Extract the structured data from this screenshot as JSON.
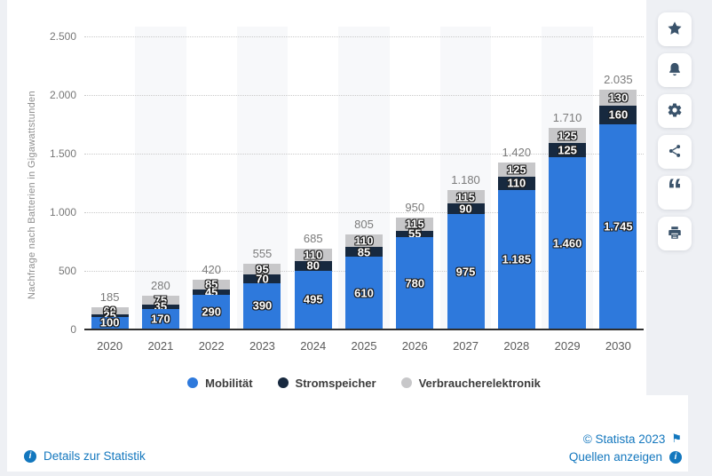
{
  "chart_data": {
    "type": "bar",
    "stacked": true,
    "title": "",
    "xlabel": "",
    "ylabel": "Nachfrage nach Batterien in Gigawattstunden",
    "categories": [
      "2020",
      "2021",
      "2022",
      "2023",
      "2024",
      "2025",
      "2026",
      "2027",
      "2028",
      "2029",
      "2030"
    ],
    "series": [
      {
        "name": "Mobilität",
        "color": "#2e79dc",
        "values": [
          100,
          170,
          290,
          390,
          495,
          610,
          780,
          975,
          1185,
          1460,
          1745
        ],
        "value_labels": [
          "100",
          "170",
          "290",
          "390",
          "495",
          "610",
          "780",
          "975",
          "1.185",
          "1.460",
          "1.745"
        ]
      },
      {
        "name": "Stromspeicher",
        "color": "#17293f",
        "values": [
          25,
          35,
          45,
          70,
          80,
          85,
          55,
          90,
          110,
          125,
          160
        ],
        "value_labels": [
          "25",
          "35",
          "45",
          "70",
          "80",
          "85",
          "55",
          "90",
          "110",
          "125",
          "160"
        ]
      },
      {
        "name": "Verbraucherelektronik",
        "color": "#c7c7c9",
        "values": [
          60,
          75,
          85,
          95,
          110,
          110,
          115,
          115,
          125,
          125,
          130
        ],
        "value_labels": [
          "60",
          "75",
          "85",
          "95",
          "110",
          "110",
          "115",
          "115",
          "125",
          "125",
          "130"
        ]
      }
    ],
    "totals": [
      185,
      280,
      420,
      555,
      685,
      805,
      950,
      1180,
      1420,
      1710,
      2035
    ],
    "total_labels": [
      "185",
      "280",
      "420",
      "555",
      "685",
      "805",
      "950",
      "1.180",
      "1.420",
      "1.710",
      "2.035"
    ],
    "ylim": [
      0,
      2500
    ],
    "y_ticks": {
      "values": [
        0,
        500,
        1000,
        1500,
        2000,
        2500
      ],
      "labels": [
        "0",
        "500",
        "1.000",
        "1.500",
        "2.000",
        "2.500"
      ]
    },
    "grid": "dotted horizontal lines every 500",
    "legend_position": "bottom"
  },
  "sidebar": {
    "buttons": [
      {
        "id": "favorite",
        "icon": "star-icon"
      },
      {
        "id": "notification",
        "icon": "bell-icon"
      },
      {
        "id": "settings",
        "icon": "gear-icon"
      },
      {
        "id": "share",
        "icon": "share-icon"
      },
      {
        "id": "cite",
        "icon": "quote-icon"
      },
      {
        "id": "print",
        "icon": "printer-icon"
      }
    ]
  },
  "footer": {
    "details_label": "Details zur Statistik",
    "copyright_label": "© Statista 2023",
    "sources_label": "Quellen anzeigen",
    "link_color": "#1377be"
  },
  "icons": {
    "info": "i",
    "flag": "⚑",
    "quote": "“"
  }
}
